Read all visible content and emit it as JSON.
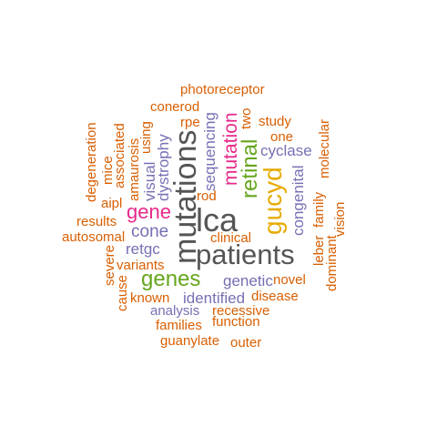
{
  "colors": {
    "orange": "#D95F02",
    "purple": "#7570B3",
    "magenta": "#E7298A",
    "green": "#66A61E",
    "gold": "#E6AB02",
    "gray": "#555555"
  },
  "words": [
    {
      "text": "photoreceptor",
      "color": "orange",
      "vertical": false
    },
    {
      "text": "conerod",
      "color": "orange",
      "vertical": false
    },
    {
      "text": "rpe",
      "color": "orange",
      "vertical": false
    },
    {
      "text": "two",
      "color": "orange",
      "vertical": true
    },
    {
      "text": "study",
      "color": "orange",
      "vertical": false
    },
    {
      "text": "degeneration",
      "color": "orange",
      "vertical": true
    },
    {
      "text": "mice",
      "color": "orange",
      "vertical": true
    },
    {
      "text": "associated",
      "color": "orange",
      "vertical": true
    },
    {
      "text": "amaurosis",
      "color": "orange",
      "vertical": true
    },
    {
      "text": "using",
      "color": "orange",
      "vertical": true
    },
    {
      "text": "visual",
      "color": "purple",
      "vertical": true
    },
    {
      "text": "dystrophy",
      "color": "purple",
      "vertical": true
    },
    {
      "text": "mutations",
      "color": "gray",
      "vertical": true
    },
    {
      "text": "sequencing",
      "color": "purple",
      "vertical": true
    },
    {
      "text": "mutation",
      "color": "magenta",
      "vertical": true
    },
    {
      "text": "retinal",
      "color": "green",
      "vertical": true
    },
    {
      "text": "one",
      "color": "orange",
      "vertical": false
    },
    {
      "text": "cyclase",
      "color": "purple",
      "vertical": false
    },
    {
      "text": "molecular",
      "color": "orange",
      "vertical": true
    },
    {
      "text": "aipl",
      "color": "orange",
      "vertical": false
    },
    {
      "text": "rod",
      "color": "orange",
      "vertical": false
    },
    {
      "text": "gene",
      "color": "magenta",
      "vertical": false
    },
    {
      "text": "lca",
      "color": "gray",
      "vertical": false
    },
    {
      "text": "gucyd",
      "color": "gold",
      "vertical": true
    },
    {
      "text": "congenital",
      "color": "purple",
      "vertical": true
    },
    {
      "text": "family",
      "color": "orange",
      "vertical": true
    },
    {
      "text": "vision",
      "color": "orange",
      "vertical": true
    },
    {
      "text": "results",
      "color": "orange",
      "vertical": false
    },
    {
      "text": "autosomal",
      "color": "orange",
      "vertical": false
    },
    {
      "text": "cone",
      "color": "purple",
      "vertical": false
    },
    {
      "text": "clinical",
      "color": "orange",
      "vertical": false
    },
    {
      "text": "leber",
      "color": "orange",
      "vertical": true
    },
    {
      "text": "dominant",
      "color": "orange",
      "vertical": true
    },
    {
      "text": "retgc",
      "color": "purple",
      "vertical": false
    },
    {
      "text": "patients",
      "color": "gray",
      "vertical": false
    },
    {
      "text": "variants",
      "color": "orange",
      "vertical": false
    },
    {
      "text": "severe",
      "color": "orange",
      "vertical": true
    },
    {
      "text": "genes",
      "color": "green",
      "vertical": false
    },
    {
      "text": "genetic",
      "color": "purple",
      "vertical": false
    },
    {
      "text": "novel",
      "color": "orange",
      "vertical": false
    },
    {
      "text": "cause",
      "color": "orange",
      "vertical": true
    },
    {
      "text": "known",
      "color": "orange",
      "vertical": false
    },
    {
      "text": "identified",
      "color": "purple",
      "vertical": false
    },
    {
      "text": "disease",
      "color": "orange",
      "vertical": false
    },
    {
      "text": "analysis",
      "color": "purple",
      "vertical": false
    },
    {
      "text": "recessive",
      "color": "orange",
      "vertical": false
    },
    {
      "text": "families",
      "color": "orange",
      "vertical": false
    },
    {
      "text": "function",
      "color": "orange",
      "vertical": false
    },
    {
      "text": "guanylate",
      "color": "orange",
      "vertical": false
    },
    {
      "text": "outer",
      "color": "orange",
      "vertical": false
    }
  ]
}
